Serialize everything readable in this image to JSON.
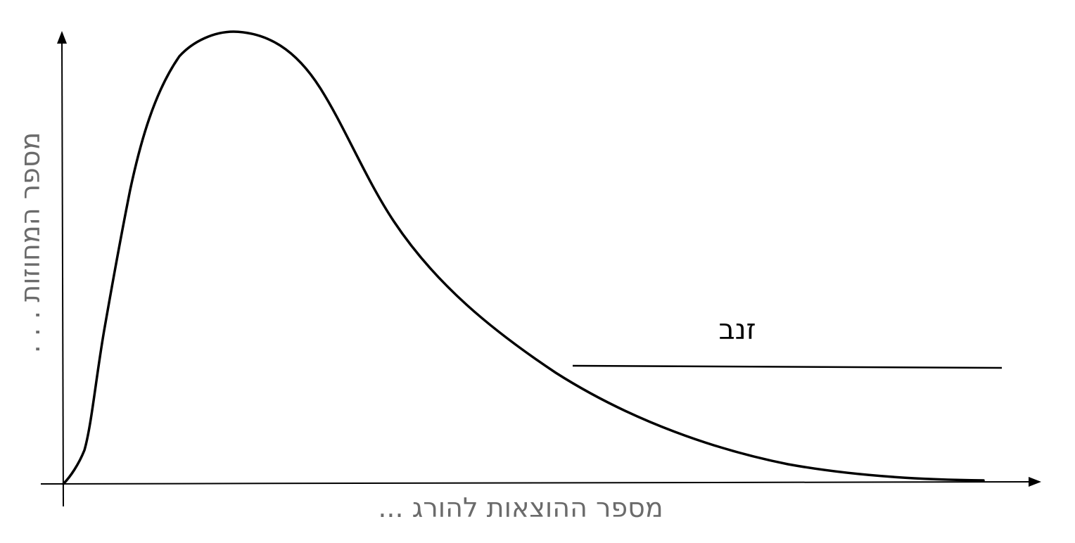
{
  "diagram": {
    "x_axis_label": "מספר ההוצאות להורג ...",
    "y_axis_label": "מספר המחוזות . . .",
    "tail_label": "זנב",
    "curve_color": "#000000",
    "label_color": "#6b6b6b"
  }
}
